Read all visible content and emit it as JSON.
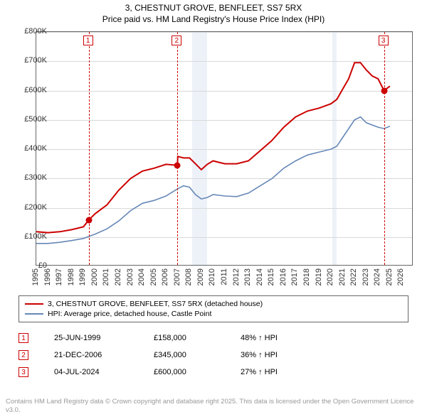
{
  "title": {
    "line1": "3, CHESTNUT GROVE, BENFLEET, SS7 5RX",
    "line2": "Price paid vs. HM Land Registry's House Price Index (HPI)"
  },
  "chart": {
    "type": "line",
    "background_color": "#ffffff",
    "grid_color": "#d8d8d8",
    "border_color": "#666666",
    "xlim": [
      1995,
      2027
    ],
    "ylim": [
      0,
      800000
    ],
    "ytick_step": 100000,
    "y_ticks": [
      "£0",
      "£100K",
      "£200K",
      "£300K",
      "£400K",
      "£500K",
      "£600K",
      "£700K",
      "£800K"
    ],
    "x_ticks": [
      "1995",
      "1996",
      "1997",
      "1998",
      "1999",
      "2000",
      "2001",
      "2002",
      "2003",
      "2004",
      "2005",
      "2006",
      "2007",
      "2008",
      "2009",
      "2010",
      "2011",
      "2012",
      "2013",
      "2014",
      "2015",
      "2016",
      "2017",
      "2018",
      "2019",
      "2020",
      "2021",
      "2022",
      "2023",
      "2024",
      "2025",
      "2026"
    ],
    "label_fontsize": 11,
    "recession_bands": [
      {
        "start": 2008.2,
        "end": 2009.5
      },
      {
        "start": 2020.1,
        "end": 2020.5
      }
    ],
    "recession_color": "#e9eff7",
    "series": {
      "price_paid": {
        "color": "#cc0000",
        "line_width": 2,
        "label": "3, CHESTNUT GROVE, BENFLEET, SS7 5RX (detached house)",
        "points": [
          [
            1995.0,
            118000
          ],
          [
            1996.0,
            115000
          ],
          [
            1997.0,
            118000
          ],
          [
            1998.0,
            125000
          ],
          [
            1999.0,
            135000
          ],
          [
            1999.45,
            158000
          ],
          [
            2000.0,
            180000
          ],
          [
            2001.0,
            210000
          ],
          [
            2002.0,
            260000
          ],
          [
            2003.0,
            300000
          ],
          [
            2004.0,
            325000
          ],
          [
            2005.0,
            335000
          ],
          [
            2006.0,
            348000
          ],
          [
            2006.97,
            345000
          ],
          [
            2007.0,
            375000
          ],
          [
            2007.5,
            370000
          ],
          [
            2008.0,
            370000
          ],
          [
            2008.5,
            350000
          ],
          [
            2009.0,
            330000
          ],
          [
            2009.5,
            348000
          ],
          [
            2010.0,
            360000
          ],
          [
            2010.5,
            355000
          ],
          [
            2011.0,
            350000
          ],
          [
            2012.0,
            350000
          ],
          [
            2013.0,
            360000
          ],
          [
            2014.0,
            395000
          ],
          [
            2015.0,
            430000
          ],
          [
            2016.0,
            475000
          ],
          [
            2017.0,
            510000
          ],
          [
            2018.0,
            530000
          ],
          [
            2019.0,
            540000
          ],
          [
            2020.0,
            555000
          ],
          [
            2020.5,
            570000
          ],
          [
            2021.0,
            605000
          ],
          [
            2021.5,
            640000
          ],
          [
            2022.0,
            695000
          ],
          [
            2022.5,
            695000
          ],
          [
            2023.0,
            670000
          ],
          [
            2023.5,
            650000
          ],
          [
            2024.0,
            640000
          ],
          [
            2024.5,
            600000
          ],
          [
            2025.0,
            615000
          ]
        ]
      },
      "hpi": {
        "color": "#6788b8",
        "line_width": 1.6,
        "label": "HPI: Average price, detached house, Castle Point",
        "points": [
          [
            1995.0,
            78000
          ],
          [
            1996.0,
            78000
          ],
          [
            1997.0,
            82000
          ],
          [
            1998.0,
            88000
          ],
          [
            1999.0,
            95000
          ],
          [
            2000.0,
            110000
          ],
          [
            2001.0,
            128000
          ],
          [
            2002.0,
            155000
          ],
          [
            2003.0,
            190000
          ],
          [
            2004.0,
            215000
          ],
          [
            2005.0,
            225000
          ],
          [
            2006.0,
            240000
          ],
          [
            2007.0,
            265000
          ],
          [
            2007.5,
            275000
          ],
          [
            2008.0,
            270000
          ],
          [
            2008.5,
            245000
          ],
          [
            2009.0,
            230000
          ],
          [
            2009.5,
            235000
          ],
          [
            2010.0,
            245000
          ],
          [
            2011.0,
            240000
          ],
          [
            2012.0,
            238000
          ],
          [
            2013.0,
            250000
          ],
          [
            2014.0,
            275000
          ],
          [
            2015.0,
            300000
          ],
          [
            2016.0,
            335000
          ],
          [
            2017.0,
            360000
          ],
          [
            2018.0,
            380000
          ],
          [
            2019.0,
            390000
          ],
          [
            2020.0,
            400000
          ],
          [
            2020.5,
            410000
          ],
          [
            2021.0,
            440000
          ],
          [
            2022.0,
            500000
          ],
          [
            2022.5,
            510000
          ],
          [
            2023.0,
            490000
          ],
          [
            2024.0,
            475000
          ],
          [
            2024.5,
            470000
          ],
          [
            2025.0,
            478000
          ]
        ]
      }
    },
    "sale_markers": [
      {
        "n": "1",
        "x": 1999.45,
        "y": 158000
      },
      {
        "n": "2",
        "x": 2006.97,
        "y": 345000
      },
      {
        "n": "3",
        "x": 2024.5,
        "y": 600000
      }
    ],
    "marker_color": "#cc0000"
  },
  "legend": {
    "rows": [
      {
        "color": "#cc0000",
        "thickness": 2,
        "text": "3, CHESTNUT GROVE, BENFLEET, SS7 5RX (detached house)"
      },
      {
        "color": "#6788b8",
        "thickness": 1.5,
        "text": "HPI: Average price, detached house, Castle Point"
      }
    ]
  },
  "sales_table": {
    "rows": [
      {
        "n": "1",
        "date": "25-JUN-1999",
        "price": "£158,000",
        "pct": "48% ↑ HPI"
      },
      {
        "n": "2",
        "date": "21-DEC-2006",
        "price": "£345,000",
        "pct": "36% ↑ HPI"
      },
      {
        "n": "3",
        "date": "04-JUL-2024",
        "price": "£600,000",
        "pct": "27% ↑ HPI"
      }
    ]
  },
  "attribution": "Contains HM Land Registry data © Crown copyright and database right 2025. This data is licensed under the Open Government Licence v3.0."
}
